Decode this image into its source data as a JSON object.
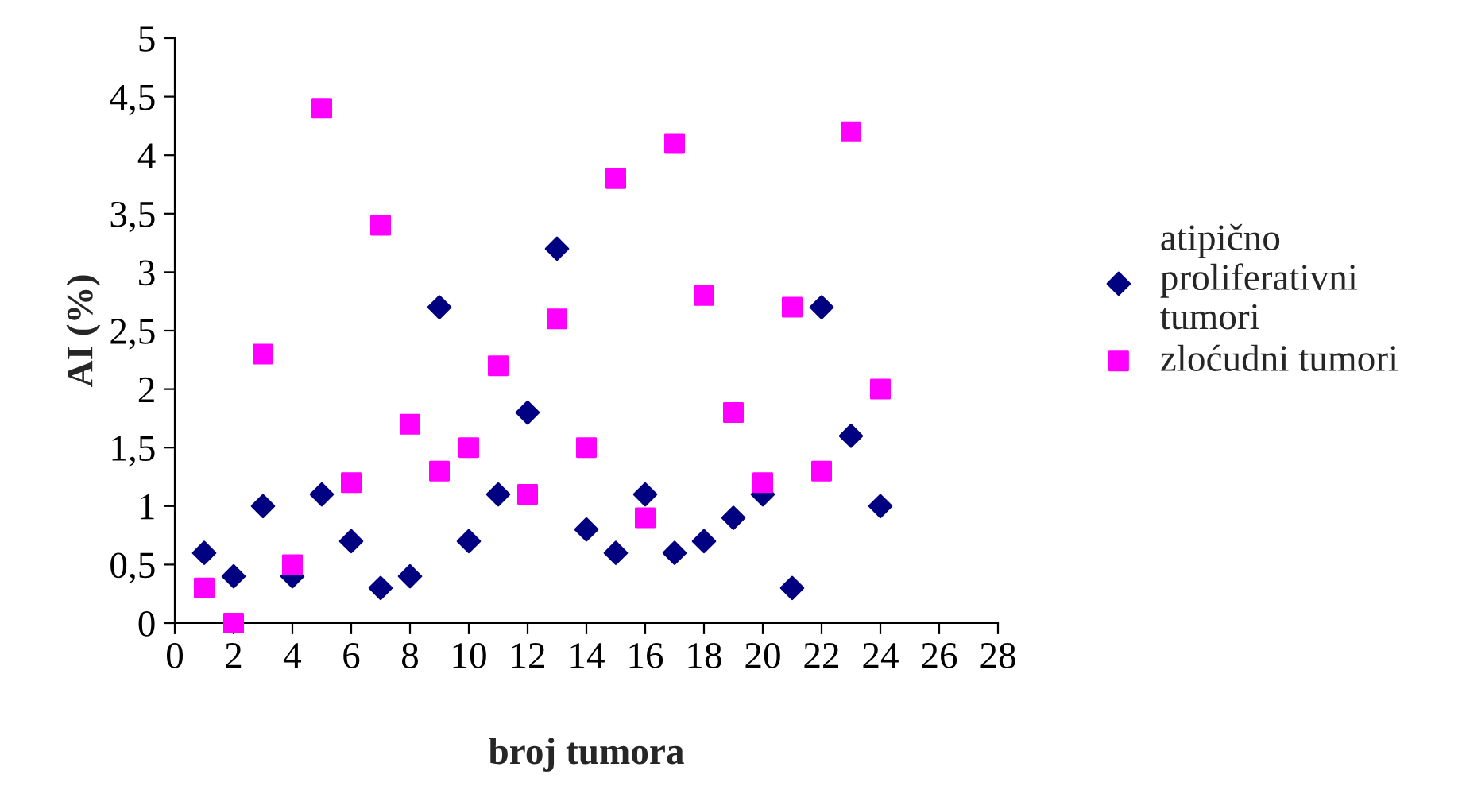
{
  "chart_data": {
    "type": "scatter",
    "xlabel": "broj tumora",
    "ylabel": "AI (%)",
    "xlim": [
      0,
      28
    ],
    "xticks": [
      0,
      2,
      4,
      6,
      8,
      10,
      12,
      14,
      16,
      18,
      20,
      22,
      24,
      26,
      28
    ],
    "ylim": [
      0,
      5
    ],
    "yticks": [
      0,
      {
        "value": 0.5,
        "label": "0,5"
      },
      1,
      {
        "value": 1.5,
        "label": "1,5"
      },
      2,
      {
        "value": 2.5,
        "label": "2,5"
      },
      3,
      {
        "value": 3.5,
        "label": "3,5"
      },
      4,
      {
        "value": 4.5,
        "label": "4,5"
      },
      5
    ],
    "x": [
      1,
      2,
      3,
      4,
      5,
      6,
      7,
      8,
      9,
      10,
      11,
      12,
      13,
      14,
      15,
      16,
      17,
      18,
      19,
      20,
      21,
      22,
      23,
      24
    ],
    "series": [
      {
        "name": "atipično proliferativni tumori",
        "color": "#000080",
        "marker": "diamond",
        "values": [
          0.6,
          0.4,
          1.0,
          0.4,
          1.1,
          0.7,
          0.3,
          0.4,
          2.7,
          0.7,
          1.1,
          1.8,
          3.2,
          0.8,
          0.6,
          1.1,
          0.6,
          0.7,
          0.9,
          1.1,
          0.3,
          2.7,
          1.6,
          1.0
        ]
      },
      {
        "name": "zloćudni tumori",
        "color": "#ff00ff",
        "marker": "square",
        "values": [
          0.3,
          0,
          2.3,
          0.5,
          4.4,
          1.2,
          3.4,
          1.7,
          1.3,
          1.5,
          2.2,
          1.1,
          2.6,
          1.5,
          3.8,
          0.9,
          4.1,
          2.8,
          1.8,
          1.2,
          2.7,
          1.3,
          4.2,
          2.0
        ]
      }
    ],
    "grid": false,
    "legend": "right"
  }
}
